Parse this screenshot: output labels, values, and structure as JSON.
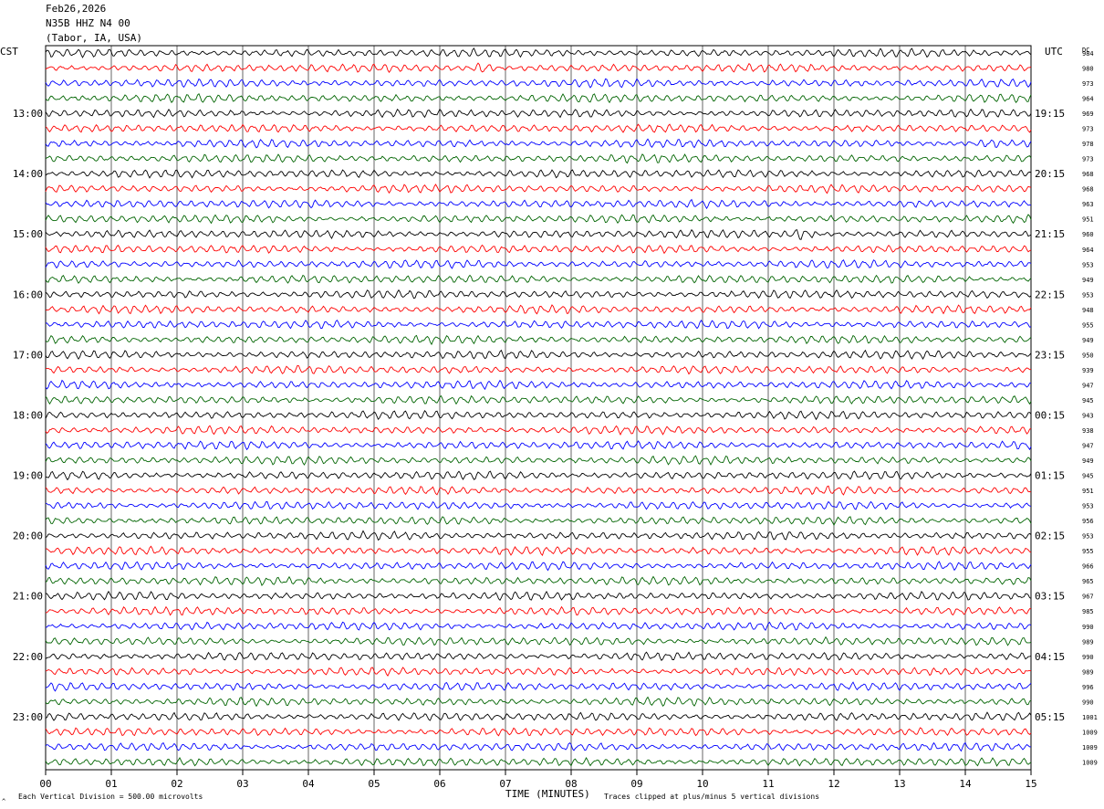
{
  "header": {
    "date": "Feb26,2026",
    "station": "N35B HHZ N4 00",
    "location": "(Tabor, IA, USA)"
  },
  "axis_labels": {
    "left_timezone": "CST",
    "right_timezone": "UTC",
    "dc_label": "DC",
    "x_axis_title": "TIME (MINUTES)",
    "scale_note": "Each Vertical Division =  500.00 microvolts",
    "clip_note": "Traces clipped at plus/minus 5 vertical divisions"
  },
  "chart_data": {
    "type": "line",
    "title": "",
    "xlabel": "TIME (MINUTES)",
    "ylabel": "",
    "xlim": [
      0,
      15
    ],
    "x_ticks": [
      "00",
      "01",
      "02",
      "03",
      "04",
      "05",
      "06",
      "07",
      "08",
      "09",
      "10",
      "11",
      "12",
      "13",
      "14",
      "15"
    ],
    "grid": true,
    "row_count": 48,
    "row_minutes": 15,
    "trace_colors": [
      "#000000",
      "#ff0000",
      "#0000ff",
      "#006400"
    ],
    "left_time_labels": [
      "13:00",
      "14:00",
      "15:00",
      "16:00",
      "17:00",
      "18:00",
      "19:00",
      "20:00",
      "21:00",
      "22:00",
      "23:00"
    ],
    "right_time_labels": [
      "19:15",
      "20:15",
      "21:15",
      "22:15",
      "23:15",
      "00:15",
      "01:15",
      "02:15",
      "03:15",
      "04:15",
      "05:15"
    ],
    "dc_offsets": [
      984,
      980,
      973,
      964,
      969,
      973,
      978,
      973,
      968,
      968,
      963,
      951,
      960,
      964,
      953,
      949,
      953,
      948,
      955,
      949,
      950,
      939,
      947,
      945,
      943,
      938,
      947,
      949,
      945,
      951,
      953,
      956,
      953,
      955,
      966,
      965,
      967,
      985,
      990,
      989,
      990,
      989,
      996,
      990,
      1001,
      1009,
      1009,
      1009
    ],
    "events": [
      {
        "row": 1,
        "minute": 6.65,
        "amplitude": "large"
      },
      {
        "row": 6,
        "minute": 14.4,
        "amplitude": "medium"
      },
      {
        "row": 12,
        "minute": 11.5,
        "amplitude": "large"
      }
    ]
  }
}
